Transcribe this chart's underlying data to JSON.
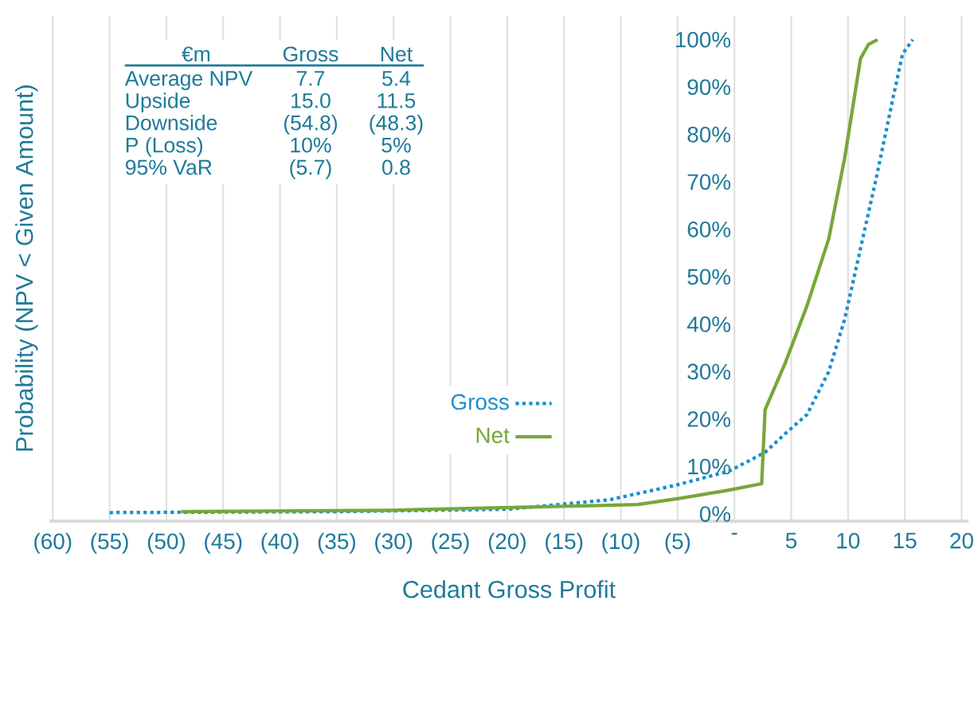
{
  "chart_data": {
    "type": "line",
    "xlabel": "Cedant Gross Profit",
    "ylabel": "Probability (NPV < Given Amount)",
    "xlim": [
      -60.3,
      20.6
    ],
    "ylim": [
      -1.5,
      105
    ],
    "xticks": [
      {
        "value": -60,
        "label": "(60)"
      },
      {
        "value": -55,
        "label": "(55)"
      },
      {
        "value": -50,
        "label": "(50)"
      },
      {
        "value": -45,
        "label": "(45)"
      },
      {
        "value": -40,
        "label": "(40)"
      },
      {
        "value": -35,
        "label": "(35)"
      },
      {
        "value": -30,
        "label": "(30)"
      },
      {
        "value": -25,
        "label": "(25)"
      },
      {
        "value": -20,
        "label": "(20)"
      },
      {
        "value": -15,
        "label": "(15)"
      },
      {
        "value": -10,
        "label": "(10)"
      },
      {
        "value": -5,
        "label": "(5)"
      },
      {
        "value": 0,
        "label": "-"
      },
      5,
      10,
      15,
      20
    ],
    "yticks": [
      {
        "value": 0,
        "label": "0%"
      },
      {
        "value": 10,
        "label": "10%"
      },
      {
        "value": 20,
        "label": "20%"
      },
      {
        "value": 30,
        "label": "30%"
      },
      {
        "value": 40,
        "label": "40%"
      },
      {
        "value": 50,
        "label": "50%"
      },
      {
        "value": 60,
        "label": "60%"
      },
      {
        "value": 70,
        "label": "70%"
      },
      {
        "value": 80,
        "label": "80%"
      },
      {
        "value": 90,
        "label": "90%"
      },
      {
        "value": 100,
        "label": "100%"
      }
    ],
    "grid": "x",
    "legend": "bottom",
    "series": [
      {
        "name": "Gross",
        "color": "#1a8fd0",
        "line_style": "dotted",
        "x": [
          -55,
          -35,
          -20,
          -11,
          -5.3,
          -0.5,
          2.7,
          4.5,
          6.4,
          8.3,
          9.7,
          11.1,
          12.5,
          13.9,
          14.8,
          15.7
        ],
        "values": [
          0.3,
          0.5,
          1,
          3,
          6,
          9,
          13,
          17,
          21,
          30,
          41,
          56,
          71,
          87,
          97,
          100
        ]
      },
      {
        "name": "Net",
        "color": "#77a73a",
        "line_style": "solid",
        "x": [
          -48.7,
          -30,
          -8.5,
          -4.8,
          -0.6,
          2.4,
          2.7,
          4.5,
          6.4,
          8.3,
          9.7,
          11.1,
          11.8,
          12.6
        ],
        "values": [
          0.5,
          0.8,
          2,
          3.3,
          5,
          6.4,
          22,
          32,
          44,
          58,
          75,
          96,
          99,
          100
        ]
      }
    ],
    "annotations": [
      "€m",
      "Gross",
      "Net",
      "Average NPV",
      "7.7",
      "5.4",
      "Upside",
      "15.0",
      "11.5",
      "Downside",
      "(54.8)",
      "(48.3)",
      "P (Loss)",
      "10%",
      "5%",
      "95% VaR",
      "(5.7)",
      "0.8"
    ]
  }
}
